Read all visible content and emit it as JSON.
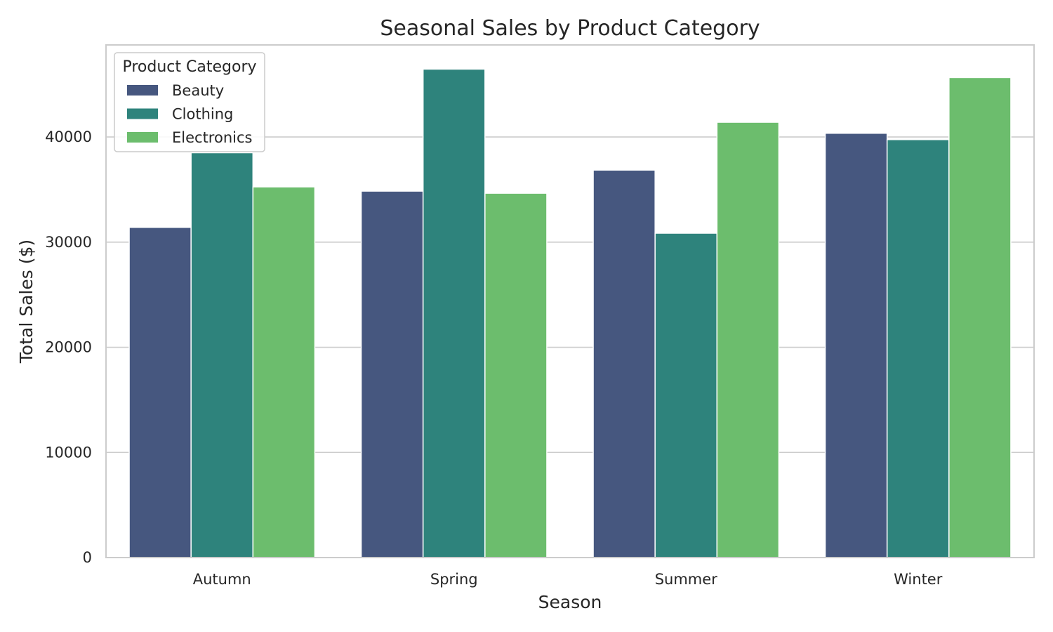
{
  "chart_data": {
    "type": "bar",
    "title": "Seasonal Sales by Product Category",
    "xlabel": "Season",
    "ylabel": "Total Sales ($)",
    "categories": [
      "Autumn",
      "Spring",
      "Summer",
      "Winter"
    ],
    "series": [
      {
        "name": "Beauty",
        "color": "#46577f",
        "values": [
          31400,
          34850,
          36850,
          40350
        ]
      },
      {
        "name": "Clothing",
        "color": "#2e837c",
        "values": [
          38500,
          46450,
          30850,
          39750
        ]
      },
      {
        "name": "Electronics",
        "color": "#6cbd6d",
        "values": [
          35250,
          34650,
          41400,
          45650
        ]
      }
    ],
    "ylim": [
      0,
      48750
    ],
    "yticks": [
      0,
      10000,
      20000,
      30000,
      40000
    ],
    "grid": true,
    "legend": {
      "title": "Product Category",
      "placement": "top-left"
    }
  }
}
